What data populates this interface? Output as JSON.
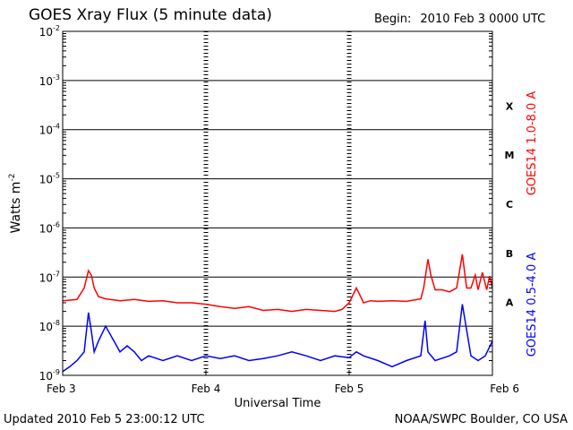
{
  "header": {
    "title": "GOES Xray Flux (5 minute data)",
    "begin_label": "Begin:",
    "begin_value": "2010 Feb 3 0000 UTC"
  },
  "footer": {
    "updated": "Updated 2010 Feb  5 23:00:12 UTC",
    "credit": "NOAA/SWPC Boulder, CO USA"
  },
  "chart_data": {
    "type": "line",
    "title": "GOES Xray Flux (5 minute data)",
    "xlabel": "Universal Time",
    "ylabel": "Watts m",
    "ylabel_exponent": "-2",
    "y_scale": "log",
    "ylim": [
      1e-09,
      0.01
    ],
    "y_tick_exponents": [
      -2,
      -3,
      -4,
      -5,
      -6,
      -7,
      -8,
      -9
    ],
    "x_categories": [
      "Feb 3",
      "Feb 4",
      "Feb 5",
      "Feb 6"
    ],
    "xlim_days": [
      0,
      3
    ],
    "grid": "horizontal at each decade",
    "flare_classes": [
      {
        "label": "X",
        "value": 0.0001
      },
      {
        "label": "M",
        "value": 1e-05
      },
      {
        "label": "C",
        "value": 1e-06
      },
      {
        "label": "B",
        "value": 1e-07
      },
      {
        "label": "A",
        "value": 1e-08
      }
    ],
    "series": [
      {
        "name": "GOES14 1.0-8.0 A",
        "color": "#ff0000",
        "x": [
          0.0,
          0.05,
          0.1,
          0.15,
          0.18,
          0.2,
          0.22,
          0.25,
          0.3,
          0.4,
          0.5,
          0.6,
          0.7,
          0.8,
          0.9,
          1.0,
          1.1,
          1.2,
          1.3,
          1.4,
          1.5,
          1.6,
          1.7,
          1.8,
          1.9,
          1.95,
          2.0,
          2.05,
          2.08,
          2.1,
          2.15,
          2.2,
          2.3,
          2.4,
          2.5,
          2.52,
          2.55,
          2.57,
          2.6,
          2.65,
          2.7,
          2.75,
          2.77,
          2.79,
          2.82,
          2.85,
          2.88,
          2.9,
          2.93,
          2.96,
          2.98,
          3.0
        ],
        "y": [
          3.3e-08,
          3.4e-08,
          3.5e-08,
          6e-08,
          1.35e-07,
          1.1e-07,
          6e-08,
          4e-08,
          3.6e-08,
          3.3e-08,
          3.5e-08,
          3.2e-08,
          3.3e-08,
          3e-08,
          3e-08,
          2.8e-08,
          2.5e-08,
          2.3e-08,
          2.5e-08,
          2.1e-08,
          2.2e-08,
          2e-08,
          2.2e-08,
          2.1e-08,
          2e-08,
          2.2e-08,
          3e-08,
          6e-08,
          4e-08,
          3e-08,
          3.3e-08,
          3.2e-08,
          3.3e-08,
          3.2e-08,
          3.6e-08,
          6e-08,
          2.3e-07,
          1.1e-07,
          5.5e-08,
          5.5e-08,
          5e-08,
          6e-08,
          1.3e-07,
          2.9e-07,
          6e-08,
          6e-08,
          1.1e-07,
          5.5e-08,
          1.25e-07,
          5.5e-08,
          1.05e-07,
          6e-08
        ]
      },
      {
        "name": "GOES14 0.5-4.0 A",
        "color": "#0000ff",
        "x": [
          0.0,
          0.05,
          0.1,
          0.15,
          0.18,
          0.2,
          0.22,
          0.25,
          0.3,
          0.4,
          0.45,
          0.5,
          0.55,
          0.6,
          0.7,
          0.8,
          0.9,
          1.0,
          1.1,
          1.2,
          1.3,
          1.4,
          1.5,
          1.6,
          1.7,
          1.8,
          1.9,
          2.0,
          2.05,
          2.1,
          2.2,
          2.3,
          2.4,
          2.5,
          2.53,
          2.55,
          2.6,
          2.7,
          2.75,
          2.79,
          2.85,
          2.9,
          2.95,
          3.0
        ],
        "y": [
          1.2e-09,
          1.5e-09,
          2e-09,
          3e-09,
          1.9e-08,
          8e-09,
          3e-09,
          5e-09,
          1e-08,
          3e-09,
          4e-09,
          3e-09,
          2e-09,
          2.5e-09,
          2e-09,
          2.5e-09,
          2e-09,
          2.5e-09,
          2.2e-09,
          2.5e-09,
          2e-09,
          2.2e-09,
          2.5e-09,
          3e-09,
          2.5e-09,
          2e-09,
          2.5e-09,
          2.3e-09,
          3e-09,
          2.5e-09,
          2e-09,
          1.5e-09,
          2e-09,
          2.5e-09,
          1.3e-08,
          3e-09,
          2e-09,
          2.5e-09,
          3e-09,
          2.8e-08,
          2.5e-09,
          2e-09,
          2.5e-09,
          5e-09
        ]
      }
    ]
  }
}
